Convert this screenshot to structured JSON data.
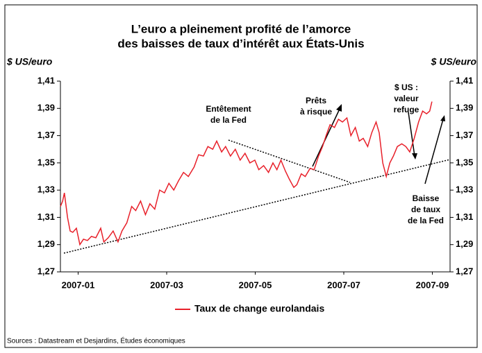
{
  "chart_data": {
    "type": "line",
    "title": [
      "L’euro a pleinement profité de l’amorce",
      "des baisses de taux d’intérêt aux États-Unis"
    ],
    "y_label": "$ US/euro",
    "y2_label": "$ US/euro",
    "source": "Sources : Datastream et Desjardins, Études économiques",
    "xlim": [
      -0.4,
      8.4
    ],
    "xticks": [
      {
        "value": 0,
        "label": "2007-01"
      },
      {
        "value": 2,
        "label": "2007-03"
      },
      {
        "value": 4,
        "label": "2007-05"
      },
      {
        "value": 6,
        "label": "2007-07"
      },
      {
        "value": 8,
        "label": "2007-09"
      }
    ],
    "ylim": [
      1.27,
      1.41
    ],
    "yticks": [
      {
        "value": 1.27,
        "label": "1,27"
      },
      {
        "value": 1.29,
        "label": "1,29"
      },
      {
        "value": 1.31,
        "label": "1,31"
      },
      {
        "value": 1.33,
        "label": "1,33"
      },
      {
        "value": 1.35,
        "label": "1,35"
      },
      {
        "value": 1.37,
        "label": "1,37"
      },
      {
        "value": 1.39,
        "label": "1,39"
      },
      {
        "value": 1.41,
        "label": "1,41"
      }
    ],
    "y2lim": [
      1.27,
      1.41
    ],
    "y2ticks": [
      {
        "value": 1.27,
        "label": "1,27"
      },
      {
        "value": 1.29,
        "label": "1,29"
      },
      {
        "value": 1.31,
        "label": "1,31"
      },
      {
        "value": 1.33,
        "label": "1,33"
      },
      {
        "value": 1.35,
        "label": "1,35"
      },
      {
        "value": 1.37,
        "label": "1,37"
      },
      {
        "value": 1.39,
        "label": "1,39"
      },
      {
        "value": 1.41,
        "label": "1,41"
      }
    ],
    "grid": false,
    "legend": "bottom",
    "x": [
      -0.4,
      -0.35,
      -0.31,
      -0.24,
      -0.18,
      -0.12,
      -0.04,
      0.04,
      0.12,
      0.21,
      0.3,
      0.4,
      0.51,
      0.58,
      0.68,
      0.79,
      0.9,
      0.99,
      1.1,
      1.21,
      1.3,
      1.41,
      1.52,
      1.62,
      1.73,
      1.84,
      1.95,
      2.05,
      2.16,
      2.27,
      2.38,
      2.49,
      2.62,
      2.72,
      2.83,
      2.93,
      3.04,
      3.13,
      3.24,
      3.33,
      3.44,
      3.55,
      3.66,
      3.77,
      3.88,
      3.99,
      4.08,
      4.19,
      4.3,
      4.4,
      4.49,
      4.58,
      4.68,
      4.77,
      4.87,
      4.94,
      5.04,
      5.13,
      5.24,
      5.33,
      5.43,
      5.52,
      5.6,
      5.69,
      5.79,
      5.88,
      5.97,
      6.07,
      6.16,
      6.26,
      6.35,
      6.44,
      6.54,
      6.63,
      6.73,
      6.8,
      6.88,
      6.96,
      7.04,
      7.12,
      7.21,
      7.31,
      7.4,
      7.49,
      7.59,
      7.69,
      7.78,
      7.87,
      7.94,
      7.99
    ],
    "series": [
      {
        "name": "Taux de change eurolandais",
        "color": "#e8202a",
        "values": [
          1.318,
          1.322,
          1.328,
          1.31,
          1.3,
          1.299,
          1.302,
          1.29,
          1.294,
          1.293,
          1.296,
          1.295,
          1.302,
          1.292,
          1.295,
          1.3,
          1.292,
          1.3,
          1.306,
          1.318,
          1.315,
          1.322,
          1.312,
          1.32,
          1.316,
          1.33,
          1.328,
          1.335,
          1.33,
          1.337,
          1.343,
          1.34,
          1.347,
          1.356,
          1.355,
          1.362,
          1.36,
          1.366,
          1.358,
          1.362,
          1.355,
          1.36,
          1.352,
          1.357,
          1.35,
          1.352,
          1.345,
          1.348,
          1.343,
          1.35,
          1.345,
          1.352,
          1.344,
          1.338,
          1.332,
          1.334,
          1.342,
          1.34,
          1.346,
          1.345,
          1.355,
          1.362,
          1.37,
          1.378,
          1.376,
          1.382,
          1.38,
          1.383,
          1.37,
          1.376,
          1.366,
          1.368,
          1.362,
          1.372,
          1.38,
          1.372,
          1.35,
          1.34,
          1.35,
          1.355,
          1.362,
          1.364,
          1.362,
          1.358,
          1.368,
          1.38,
          1.388,
          1.386,
          1.388,
          1.395
        ]
      }
    ],
    "annotations": [
      {
        "lines": [
          "Entêtement",
          "de la Fed"
        ]
      },
      {
        "lines": [
          "Prêts",
          "à risque"
        ]
      },
      {
        "lines": [
          "$ US :",
          "valeur",
          "refuge"
        ]
      },
      {
        "lines": [
          "Baisse",
          "de taux",
          "de la Fed"
        ]
      }
    ]
  }
}
